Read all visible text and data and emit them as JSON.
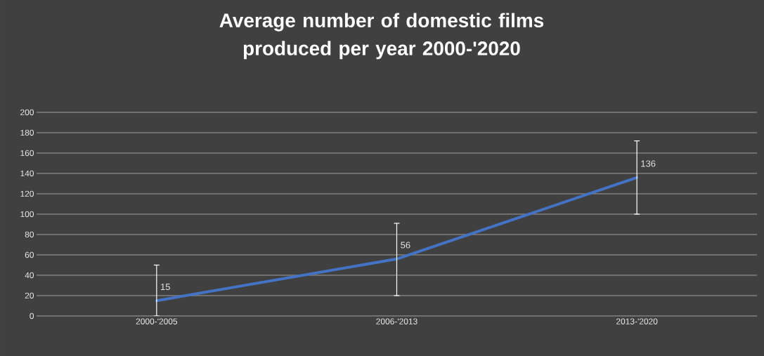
{
  "chart_data": {
    "type": "line",
    "title": "Average number of domestic films produced per year 2000-'2020",
    "categories": [
      "2000-'2005",
      "2006-'2013",
      "2013-'2020"
    ],
    "series": [
      {
        "color": "#4472c4",
        "values": [
          15,
          56,
          136
        ],
        "errors": [
          [
            0,
            50
          ],
          [
            20,
            91
          ],
          [
            100,
            172
          ]
        ]
      }
    ],
    "ylim": [
      0,
      200
    ],
    "yticks": [
      0,
      20,
      40,
      60,
      80,
      100,
      120,
      140,
      160,
      180,
      200
    ],
    "grid": "y",
    "data_labels": true
  }
}
